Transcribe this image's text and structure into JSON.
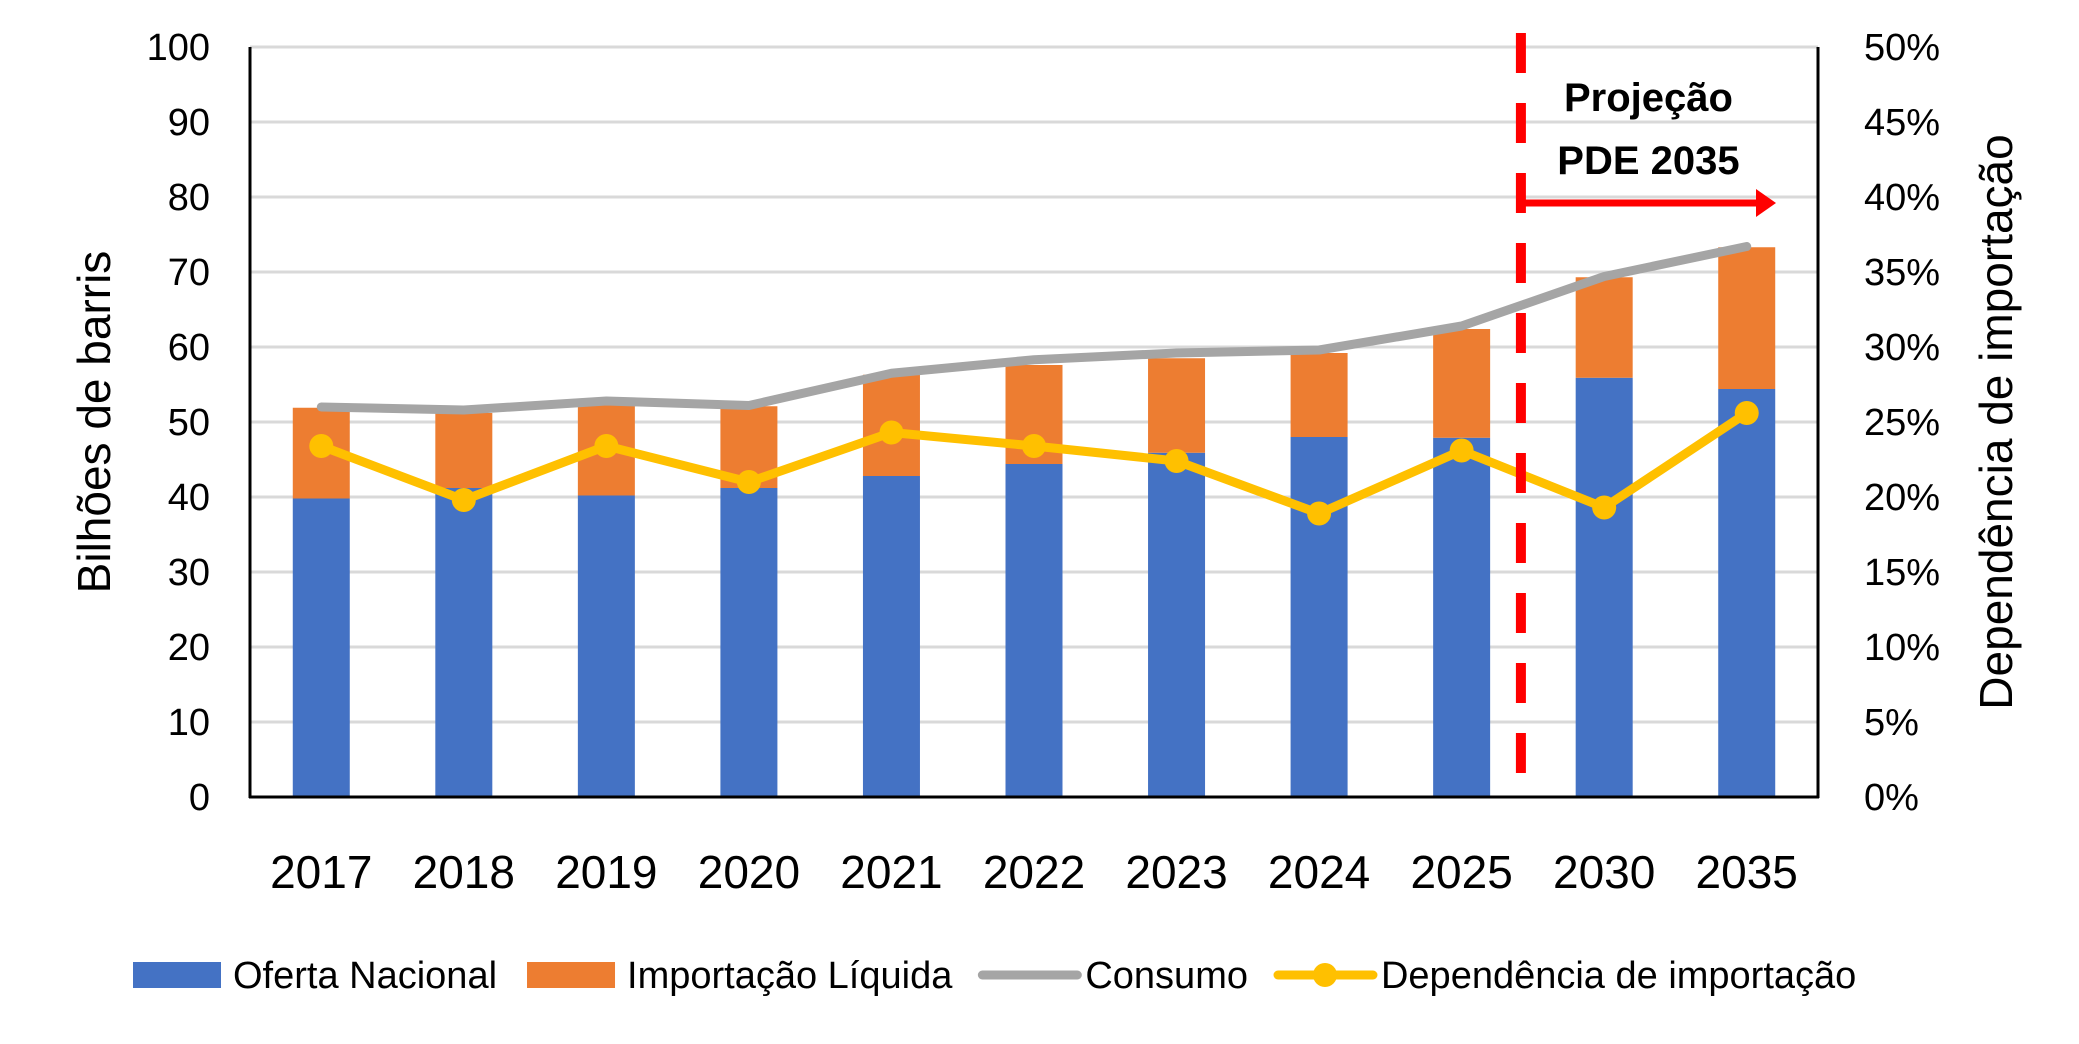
{
  "chart_data": {
    "type": "bar",
    "subtype": "stacked-bar-with-lines",
    "title": "",
    "categories": [
      "2017",
      "2018",
      "2019",
      "2020",
      "2021",
      "2022",
      "2023",
      "2024",
      "2025",
      "2030",
      "2035"
    ],
    "series": [
      {
        "name": "Oferta Nacional",
        "type": "bar",
        "stack": "total",
        "axis": "left",
        "color": "#4472C4",
        "values": [
          39.8,
          41.2,
          40.2,
          41.2,
          42.8,
          44.4,
          45.9,
          48.0,
          47.9,
          55.9,
          54.4
        ]
      },
      {
        "name": "Importação Líquida",
        "type": "bar",
        "stack": "total",
        "axis": "left",
        "color": "#ED7D31",
        "values": [
          12.1,
          10.0,
          12.3,
          10.9,
          13.5,
          13.2,
          12.6,
          11.2,
          14.5,
          13.4,
          18.9
        ]
      },
      {
        "name": "Consumo",
        "type": "line",
        "axis": "left",
        "color": "#A5A5A5",
        "values": [
          52.0,
          51.6,
          52.8,
          52.2,
          56.5,
          58.3,
          59.2,
          59.6,
          62.8,
          69.4,
          73.4
        ]
      },
      {
        "name": "Dependência de importação",
        "type": "line-marker",
        "axis": "right",
        "color": "#FFC000",
        "values": [
          23.4,
          19.8,
          23.4,
          21.0,
          24.3,
          23.4,
          22.4,
          18.9,
          23.1,
          19.3,
          25.6
        ]
      }
    ],
    "xlabel": "",
    "ylabel": "Bilhões de barris",
    "ylim": [
      0,
      100
    ],
    "yticks": [
      0,
      10,
      20,
      30,
      40,
      50,
      60,
      70,
      80,
      90,
      100
    ],
    "y2label": "Dependência de importação",
    "y2lim": [
      0,
      50
    ],
    "y2ticks": [
      "0%",
      "5%",
      "10%",
      "15%",
      "20%",
      "25%",
      "30%",
      "35%",
      "40%",
      "45%",
      "50%"
    ],
    "grid": true,
    "legend_position": "bottom",
    "annotation": {
      "lines": [
        "Projeção",
        "PDE 2035"
      ],
      "divider_between": [
        "2025",
        "2030"
      ],
      "divider_color": "#FF0000",
      "arrow_direction": "right"
    }
  }
}
